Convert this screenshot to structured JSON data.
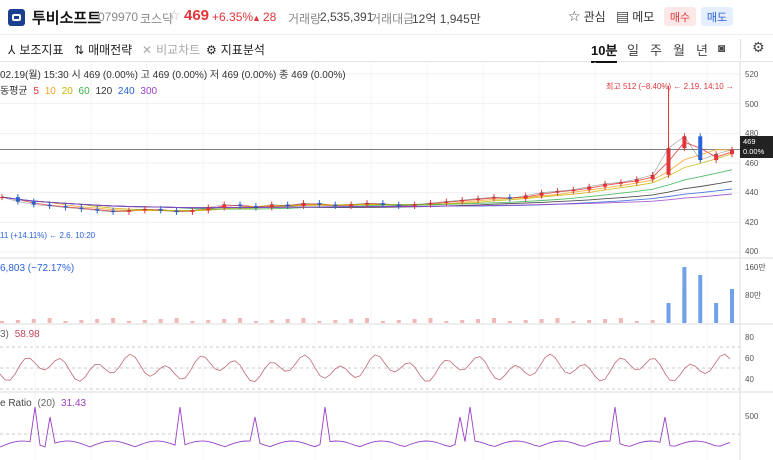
{
  "header": {
    "stock_name": "투비소프트",
    "stock_code": "079970",
    "market": "코스닥",
    "price": "469",
    "change_pct": "+6.35%",
    "change": "28",
    "volume_label": "거래량",
    "volume": "2,535,391",
    "amount_label": "거래대금",
    "amount": "12억 1,945만",
    "watch_label": "관심",
    "memo_label": "메모",
    "buy_label": "매수",
    "sell_label": "매도"
  },
  "toolbar": {
    "indicators_label": "보조지표",
    "strategy_label": "매매전략",
    "compare_label": "비교차트",
    "analysis_label": "지표분석",
    "periods": [
      "10분",
      "일",
      "주",
      "월",
      "년"
    ],
    "active_period": "10분"
  },
  "chart": {
    "ohlc_text": "02.19(월) 15:30 시 469 (0.00%)  고 469 (0.00%)  저 469 (0.00%)  종 469 (0.00%)",
    "ma_label": "동평균",
    "ma_periods": [
      "5",
      "10",
      "20",
      "60",
      "120",
      "240",
      "300"
    ],
    "ma_colors": [
      "#e2353a",
      "#f5a623",
      "#c9b400",
      "#36b24a",
      "#333333",
      "#2962d9",
      "#9b3fc6"
    ],
    "high_annotation": "최고 512 (−8.40%) ← 2.19. 14:10 →",
    "low_annotation": "11 (+14.11%) ← 2.6. 10:20",
    "current_price_tag": "469",
    "current_price_pct": "0.00%",
    "price_axis": [
      "520",
      "500",
      "480",
      "460",
      "440",
      "420",
      "400"
    ],
    "volume_label": "6,803 (−72.17%)",
    "volume_axis": [
      "160만",
      "80만"
    ],
    "rsi_label_prefix": "3)",
    "rsi_value": "58.98",
    "rsi_axis": [
      "80",
      "60",
      "40"
    ],
    "ratio_label": "e Ratio",
    "ratio_param": "(20)",
    "ratio_value": "31.43",
    "ratio_axis": [
      "500"
    ]
  },
  "chart_data": {
    "type": "line",
    "title": "",
    "ylabel": "",
    "ylim": [
      400,
      520
    ],
    "series": [
      {
        "name": "종",
        "values": [
          437,
          434,
          432,
          431,
          430,
          429,
          428,
          427,
          428,
          429,
          428,
          427,
          428,
          430,
          432,
          431,
          430,
          432,
          431,
          433,
          432,
          431,
          432,
          433,
          432,
          431,
          432,
          433,
          434,
          435,
          436,
          437,
          436,
          438,
          440,
          441,
          442,
          444,
          446,
          447,
          449,
          452,
          470,
          478,
          462,
          466,
          469
        ]
      }
    ],
    "annotations": [
      "최고 512",
      "11 (+14.11%)"
    ],
    "current": 469
  }
}
